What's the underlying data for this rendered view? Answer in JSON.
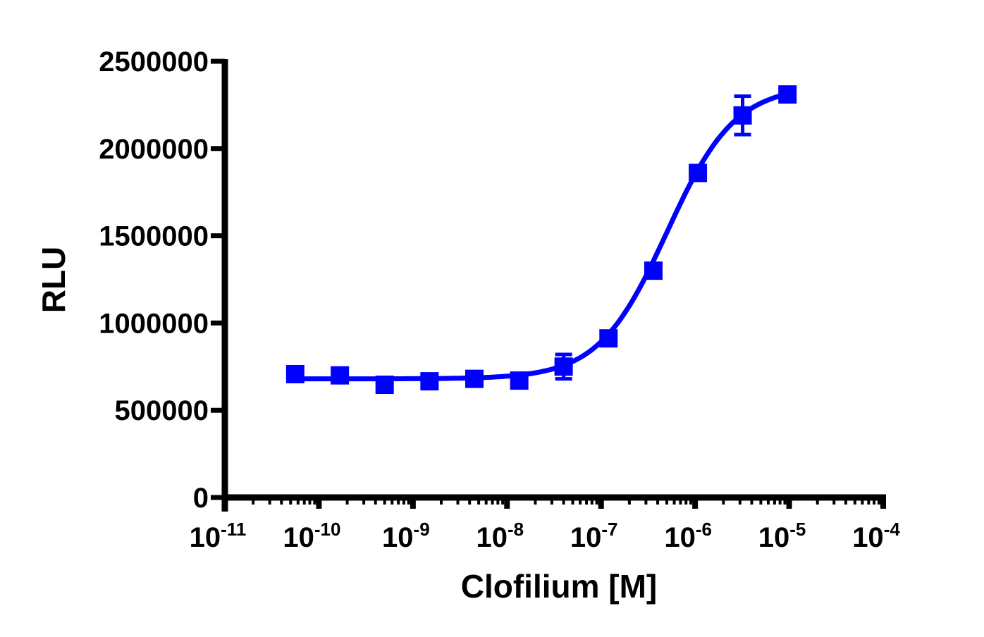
{
  "chart_data": {
    "type": "scatter",
    "title": "",
    "xlabel": "Clofilium [M]",
    "ylabel": "RLU",
    "xscale": "log",
    "xlim": [
      1e-11,
      0.0001
    ],
    "ylim": [
      0,
      2500000
    ],
    "x_ticks": [
      "10^-11",
      "10^-10",
      "10^-9",
      "10^-8",
      "10^-7",
      "10^-6",
      "10^-5",
      "10^-4"
    ],
    "x_tick_exponents": [
      "-11",
      "-10",
      "-9",
      "-8",
      "-7",
      "-6",
      "-5",
      "-4"
    ],
    "y_ticks": [
      "0",
      "500000",
      "1000000",
      "1500000",
      "2000000",
      "2500000"
    ],
    "grid": false,
    "legend": null,
    "series": [
      {
        "name": "Clofilium",
        "color": "#0000ff",
        "marker": "square",
        "fit": "sigmoidal dose-response curve",
        "x": [
          5.6e-11,
          1.67e-10,
          5e-10,
          1.5e-09,
          4.5e-09,
          1.35e-08,
          4e-08,
          1.2e-07,
          3.6e-07,
          1.07e-06,
          3.2e-06,
          9.6e-06
        ],
        "values": [
          707000,
          700000,
          646000,
          666000,
          680000,
          670000,
          750000,
          912000,
          1300000,
          1860000,
          2190000,
          2310000
        ],
        "error": [
          40000,
          15000,
          30000,
          15000,
          30000,
          15000,
          70000,
          40000,
          40000,
          40000,
          110000,
          30000
        ]
      }
    ],
    "fit_params": {
      "bottom": 680000,
      "top": 2360000,
      "log_ec50": -6.3,
      "hill": 1.2
    }
  },
  "axes": {
    "y_title": "RLU",
    "x_title": "Clofilium [M]",
    "x_base": "10"
  }
}
